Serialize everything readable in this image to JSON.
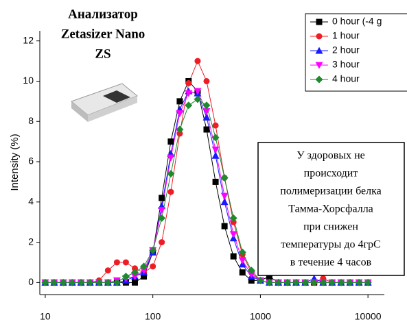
{
  "chart_data": {
    "type": "line",
    "title_lines": [
      "Анализатор",
      "Zetasizer Nano",
      "ZS"
    ],
    "y_label": "Intensity (%)",
    "annotation_lines": [
      "У здоровых не",
      "происходит",
      "полимеризации белка",
      "Тамма-Хорсфалла",
      "при снижен",
      "температуры до 4грС",
      "в течение 4 часов"
    ],
    "log_x": true,
    "xlim": [
      8.9,
      14200
    ],
    "xticks": [
      10,
      100,
      1000,
      10000
    ],
    "ylim": [
      -0.6,
      12.5
    ],
    "yticks": [
      0,
      2,
      4,
      6,
      8,
      10,
      12
    ],
    "legend": "top-right",
    "x": [
      10,
      12.1,
      14.7,
      17.8,
      21.5,
      26.1,
      31.6,
      38.3,
      46.4,
      56.2,
      68.1,
      82.5,
      100,
      121,
      147,
      178,
      215,
      261,
      316,
      383,
      464,
      562,
      681,
      825,
      1000,
      1210,
      1470,
      1780,
      2150,
      2610,
      3160,
      3830,
      4640,
      5620,
      6810,
      8250,
      10000
    ],
    "series": [
      {
        "name": "0 hour (-4 g",
        "color": "#000000",
        "marker": "square",
        "values": [
          0,
          0,
          0,
          0,
          0,
          0,
          0,
          0,
          0,
          0,
          0,
          0.3,
          1.5,
          4.2,
          7.0,
          9.0,
          10.0,
          9.5,
          7.6,
          5.0,
          2.8,
          1.3,
          0.5,
          0.1,
          0.1,
          0.3,
          0,
          0,
          0,
          0,
          0,
          0,
          0,
          0,
          0,
          0,
          0
        ]
      },
      {
        "name": "1 hour",
        "color": "#ee1c25",
        "marker": "circle",
        "values": [
          0,
          0,
          0,
          0,
          0,
          0,
          0.1,
          0.6,
          1.0,
          1.0,
          0.7,
          0.5,
          0.8,
          2.0,
          4.5,
          7.4,
          9.9,
          11.0,
          10.0,
          7.8,
          5.2,
          3.0,
          1.4,
          0.5,
          0.1,
          0,
          0,
          0,
          0,
          0,
          0,
          0.2,
          0,
          0,
          0,
          0,
          0
        ]
      },
      {
        "name": "2 hour",
        "color": "#1a1aff",
        "marker": "triangle-up",
        "values": [
          0,
          0,
          0,
          0,
          0,
          0,
          0,
          0,
          0,
          0.1,
          0.3,
          0.5,
          1.5,
          3.8,
          6.4,
          8.6,
          9.5,
          9.4,
          8.2,
          6.3,
          4.0,
          2.2,
          0.9,
          0.3,
          0.1,
          0,
          0,
          0,
          0,
          0,
          0.2,
          0,
          0,
          0,
          0,
          0,
          0
        ]
      },
      {
        "name": "3 hour",
        "color": "#ff00ff",
        "marker": "triangle-down",
        "values": [
          0,
          0,
          0,
          0,
          0,
          0,
          0,
          0,
          0.1,
          0.2,
          0.3,
          0.6,
          1.6,
          3.6,
          6.2,
          8.4,
          9.4,
          9.5,
          8.5,
          6.6,
          4.3,
          2.4,
          1.1,
          0.4,
          0.1,
          0,
          0,
          0,
          0,
          0,
          0,
          0,
          0,
          0,
          0,
          0,
          0
        ]
      },
      {
        "name": "4 hour",
        "color": "#1e8a2e",
        "marker": "diamond",
        "values": [
          0,
          0,
          0,
          0,
          0,
          0,
          0,
          0,
          0,
          0.3,
          0.5,
          0.8,
          1.6,
          3.2,
          5.4,
          7.6,
          8.8,
          9.1,
          8.8,
          7.2,
          5.2,
          3.2,
          1.5,
          0.6,
          0.1,
          0,
          0,
          0,
          0,
          0,
          0,
          0,
          0,
          0,
          0,
          0,
          0
        ]
      }
    ]
  }
}
